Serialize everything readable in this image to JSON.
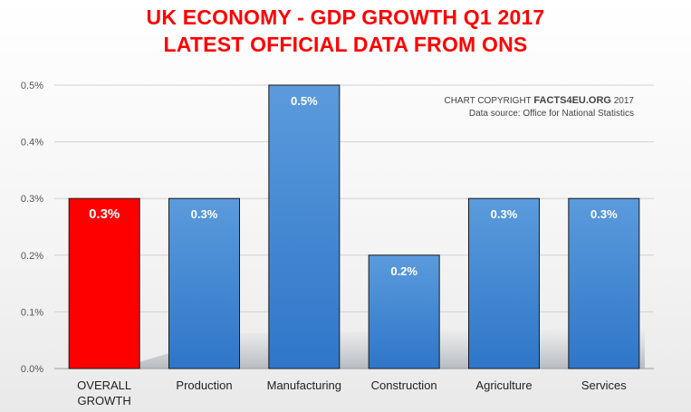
{
  "title": {
    "line1": "UK ECONOMY - GDP GROWTH Q1 2017",
    "line2": "LATEST OFFICIAL DATA FROM ONS"
  },
  "copyright": {
    "prefix": "CHART COPYRIGHT",
    "brand": "FACTS4EU.ORG",
    "year": "2017",
    "source": "Data source: Office for National Statistics"
  },
  "colors": {
    "highlight": "#ff0000",
    "bar": "#4a90d9",
    "title": "#ff0000"
  },
  "chart_data": {
    "type": "bar",
    "categories": [
      [
        "OVERALL",
        "GROWTH"
      ],
      [
        "Production"
      ],
      [
        "Manufacturing"
      ],
      [
        "Construction"
      ],
      [
        "Agriculture"
      ],
      [
        "Services"
      ]
    ],
    "values": [
      0.3,
      0.3,
      0.5,
      0.2,
      0.3,
      0.3
    ],
    "value_labels": [
      "0.3%",
      "0.3%",
      "0.5%",
      "0.2%",
      "0.3%",
      "0.3%"
    ],
    "highlight_index": 0,
    "ylim": [
      0,
      0.5
    ],
    "yticks": [
      0,
      0.1,
      0.2,
      0.3,
      0.4,
      0.5
    ],
    "ytick_labels": [
      "0.0%",
      "0.1%",
      "0.2%",
      "0.3%",
      "0.4%",
      "0.5%"
    ],
    "grid": true,
    "xlabel": "",
    "ylabel": ""
  }
}
